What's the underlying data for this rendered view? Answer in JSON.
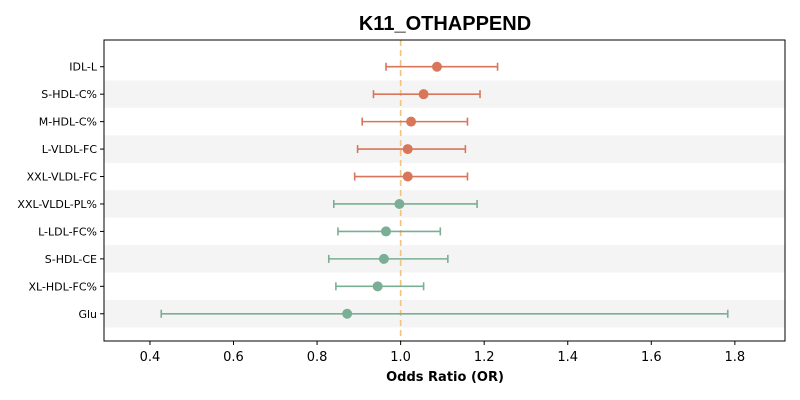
{
  "chart_data": {
    "type": "forest",
    "title": "K11_OTHAPPEND",
    "xlabel": "Odds Ratio (OR)",
    "xlim": [
      0.29,
      1.92
    ],
    "xticks": [
      0.4,
      0.6,
      0.8,
      1.0,
      1.2,
      1.4,
      1.6,
      1.8
    ],
    "xtick_labels": [
      "0.4",
      "0.6",
      "0.8",
      "1.0",
      "1.2",
      "1.4",
      "1.6",
      "1.8"
    ],
    "reference_line": 1.0,
    "grid": false,
    "alternating_row_shading": true,
    "colors": {
      "or_gt_1": "#d9755a",
      "or_lt_1": "#7aae95",
      "reference_line": "#f2c27e",
      "row_shade": "#f4f4f4"
    },
    "rows": [
      {
        "label": "IDL-L",
        "or": 1.087,
        "ci_low": 0.965,
        "ci_high": 1.232
      },
      {
        "label": "S-HDL-C%",
        "or": 1.055,
        "ci_low": 0.935,
        "ci_high": 1.19
      },
      {
        "label": "M-HDL-C%",
        "or": 1.025,
        "ci_low": 0.908,
        "ci_high": 1.16
      },
      {
        "label": "L-VLDL-FC",
        "or": 1.017,
        "ci_low": 0.897,
        "ci_high": 1.155
      },
      {
        "label": "XXL-VLDL-FC",
        "or": 1.017,
        "ci_low": 0.89,
        "ci_high": 1.16
      },
      {
        "label": "XXL-VLDL-PL%",
        "or": 0.997,
        "ci_low": 0.84,
        "ci_high": 1.183
      },
      {
        "label": "L-LDL-FC%",
        "or": 0.965,
        "ci_low": 0.85,
        "ci_high": 1.095
      },
      {
        "label": "S-HDL-CE",
        "or": 0.96,
        "ci_low": 0.828,
        "ci_high": 1.113
      },
      {
        "label": "XL-HDL-FC%",
        "or": 0.945,
        "ci_low": 0.845,
        "ci_high": 1.055
      },
      {
        "label": "Glu",
        "or": 0.872,
        "ci_low": 0.427,
        "ci_high": 1.783
      }
    ]
  }
}
